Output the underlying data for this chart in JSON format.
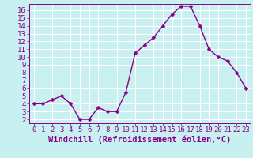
{
  "x": [
    0,
    1,
    2,
    3,
    4,
    5,
    6,
    7,
    8,
    9,
    10,
    11,
    12,
    13,
    14,
    15,
    16,
    17,
    18,
    19,
    20,
    21,
    22,
    23
  ],
  "y": [
    4,
    4,
    4.5,
    5,
    4,
    2,
    2,
    3.5,
    3,
    3,
    5.5,
    10.5,
    11.5,
    12.5,
    14,
    15.5,
    16.5,
    16.5,
    14,
    11,
    10,
    9.5,
    8,
    6
  ],
  "line_color": "#880088",
  "marker_color": "#880088",
  "bg_color": "#c8f0f0",
  "grid_color": "#aadddd",
  "xlabel": "Windchill (Refroidissement éolien,°C)",
  "xlabel_color": "#880088",
  "ylim": [
    1.5,
    16.8
  ],
  "xlim": [
    -0.5,
    23.5
  ],
  "yticks": [
    2,
    3,
    4,
    5,
    6,
    7,
    8,
    9,
    10,
    11,
    12,
    13,
    14,
    15,
    16
  ],
  "xticks": [
    0,
    1,
    2,
    3,
    4,
    5,
    6,
    7,
    8,
    9,
    10,
    11,
    12,
    13,
    14,
    15,
    16,
    17,
    18,
    19,
    20,
    21,
    22,
    23
  ],
  "tick_color": "#880088",
  "tick_label_fontsize": 6.5,
  "xlabel_fontsize": 7.5,
  "line_width": 1.0,
  "marker_size": 2.5
}
